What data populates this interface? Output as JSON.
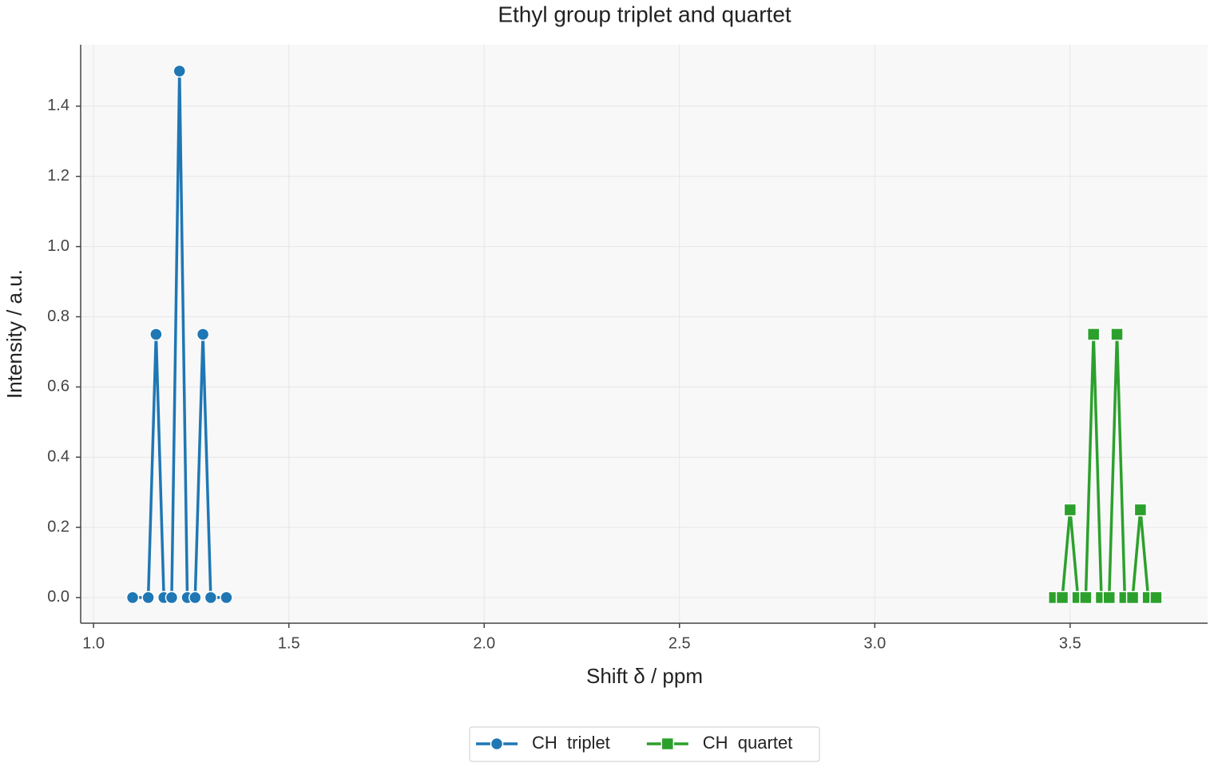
{
  "chart_data": {
    "type": "line",
    "title": "Ethyl group triplet and quartet",
    "x_label": "Shift δ / ppm",
    "y_label": "Intensity / a.u.",
    "xlim": [
      0.967,
      3.852
    ],
    "ylim": [
      -0.073,
      1.575
    ],
    "xticks": [
      {
        "value": 1,
        "label": "1.0"
      },
      1.5,
      {
        "value": 2,
        "label": "2.0"
      },
      2.5,
      {
        "value": 3,
        "label": "3.0"
      },
      3.5
    ],
    "yticks": [
      {
        "value": 0,
        "label": "0.0"
      },
      0.2,
      0.4,
      0.6,
      0.8,
      {
        "value": 1,
        "label": "1.0"
      },
      1.2,
      1.4
    ],
    "grid": true,
    "legend": "bottom",
    "series": [
      {
        "name": "CH  triplet",
        "color": "#1f77b4",
        "marker": "circle",
        "x": [
          1.1,
          1.14,
          1.16,
          1.18,
          1.2,
          1.22,
          1.24,
          1.26,
          1.28,
          1.3,
          1.34
        ],
        "values": [
          0,
          0,
          0.75,
          0,
          0,
          1.5,
          0,
          0,
          0.75,
          0,
          0
        ]
      },
      {
        "name": "CH  quartet",
        "color": "#2ca02c",
        "marker": "square",
        "x": [
          3.46,
          3.48,
          3.5,
          3.52,
          3.54,
          3.56,
          3.58,
          3.6,
          3.62,
          3.64,
          3.66,
          3.68,
          3.7,
          3.72
        ],
        "values": [
          0,
          0,
          0.25,
          0,
          0,
          0.75,
          0,
          0,
          0.75,
          0,
          0,
          0.25,
          0,
          0
        ]
      }
    ]
  }
}
